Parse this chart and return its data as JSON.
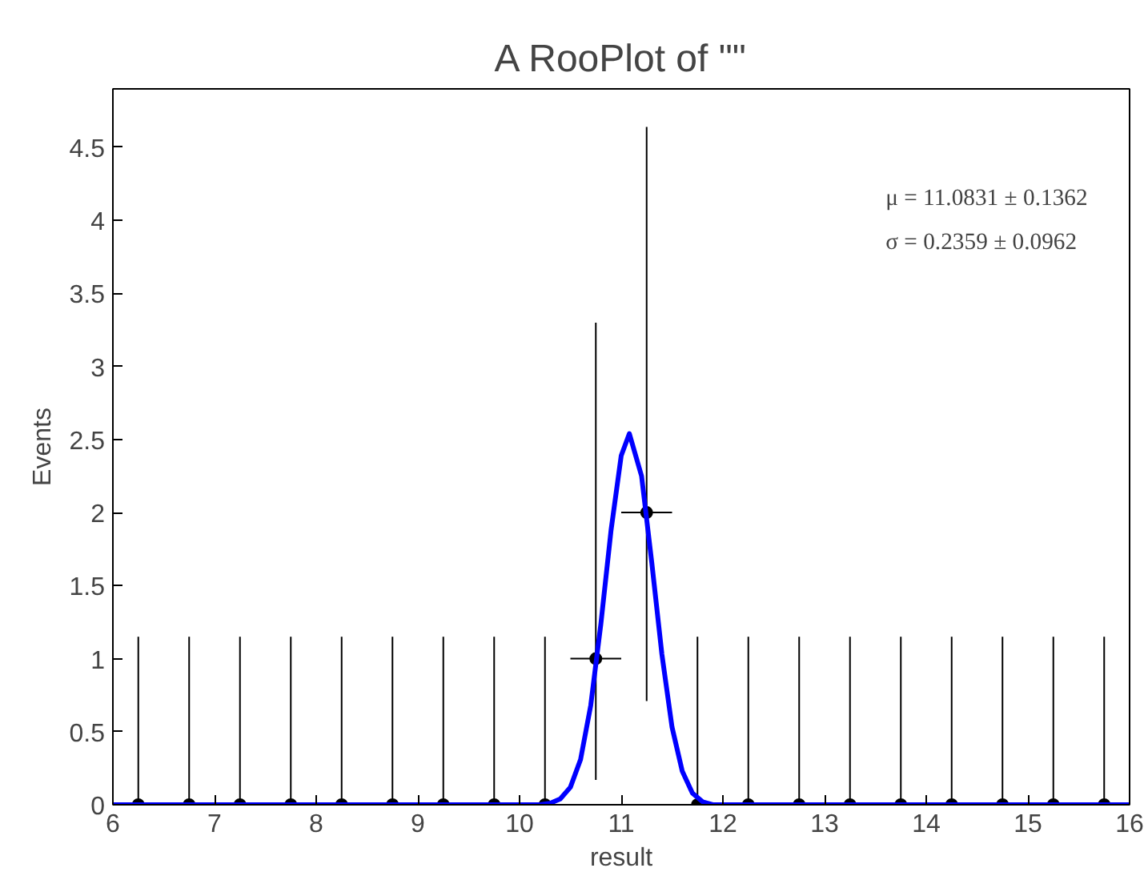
{
  "chart_data": {
    "type": "scatter",
    "title": "A RooPlot of \"\"",
    "xlabel": "result",
    "ylabel": "Events",
    "xlim": [
      6,
      16
    ],
    "ylim": [
      0,
      4.9
    ],
    "xticks": [
      6,
      7,
      8,
      9,
      10,
      11,
      12,
      13,
      14,
      15,
      16
    ],
    "yticks": [
      0,
      0.5,
      1,
      1.5,
      2,
      2.5,
      3,
      3.5,
      4,
      4.5
    ],
    "grid": false,
    "annotations": [
      "μ = 11.0831 ± 0.1362",
      "σ = 0.2359 ± 0.0962"
    ],
    "series": [
      {
        "color": "#000000",
        "marker": "circle",
        "x": [
          6.25,
          6.75,
          7.25,
          7.75,
          8.25,
          8.75,
          9.25,
          9.75,
          10.25,
          10.75,
          11.25,
          11.75,
          12.25,
          12.75,
          13.25,
          13.75,
          14.25,
          14.75,
          15.25,
          15.75
        ],
        "values": [
          0,
          0,
          0,
          0,
          0,
          0,
          0,
          0,
          0,
          1,
          2,
          0,
          0,
          0,
          0,
          0,
          0,
          0,
          0,
          0
        ],
        "errors": [
          [
            0,
            1.15
          ],
          [
            0,
            1.15
          ],
          [
            0,
            1.15
          ],
          [
            0,
            1.15
          ],
          [
            0,
            1.15
          ],
          [
            0,
            1.15
          ],
          [
            0,
            1.15
          ],
          [
            0,
            1.15
          ],
          [
            0,
            1.15
          ],
          [
            0.17,
            3.3
          ],
          [
            0.71,
            4.64
          ],
          [
            0,
            1.15
          ],
          [
            0,
            1.15
          ],
          [
            0,
            1.15
          ],
          [
            0,
            1.15
          ],
          [
            0,
            1.15
          ],
          [
            0,
            1.15
          ],
          [
            0,
            1.15
          ],
          [
            0,
            1.15
          ],
          [
            0,
            1.15
          ]
        ],
        "xerrors": [
          null,
          null,
          null,
          null,
          null,
          null,
          null,
          null,
          null,
          0.25,
          0.25,
          null,
          null,
          null,
          null,
          null,
          null,
          null,
          null,
          null
        ]
      },
      {
        "type": "line",
        "color": "#0000ff",
        "marker": "none",
        "x": [
          6,
          10.2,
          10.3,
          10.4,
          10.5,
          10.6,
          10.7,
          10.8,
          10.9,
          11.0,
          11.08,
          11.2,
          11.3,
          11.4,
          11.5,
          11.6,
          11.7,
          11.8,
          11.9,
          16
        ],
        "values": [
          0,
          0,
          0.01,
          0.04,
          0.12,
          0.31,
          0.68,
          1.24,
          1.88,
          2.39,
          2.54,
          2.25,
          1.66,
          1.03,
          0.53,
          0.23,
          0.08,
          0.02,
          0,
          0
        ]
      }
    ]
  }
}
